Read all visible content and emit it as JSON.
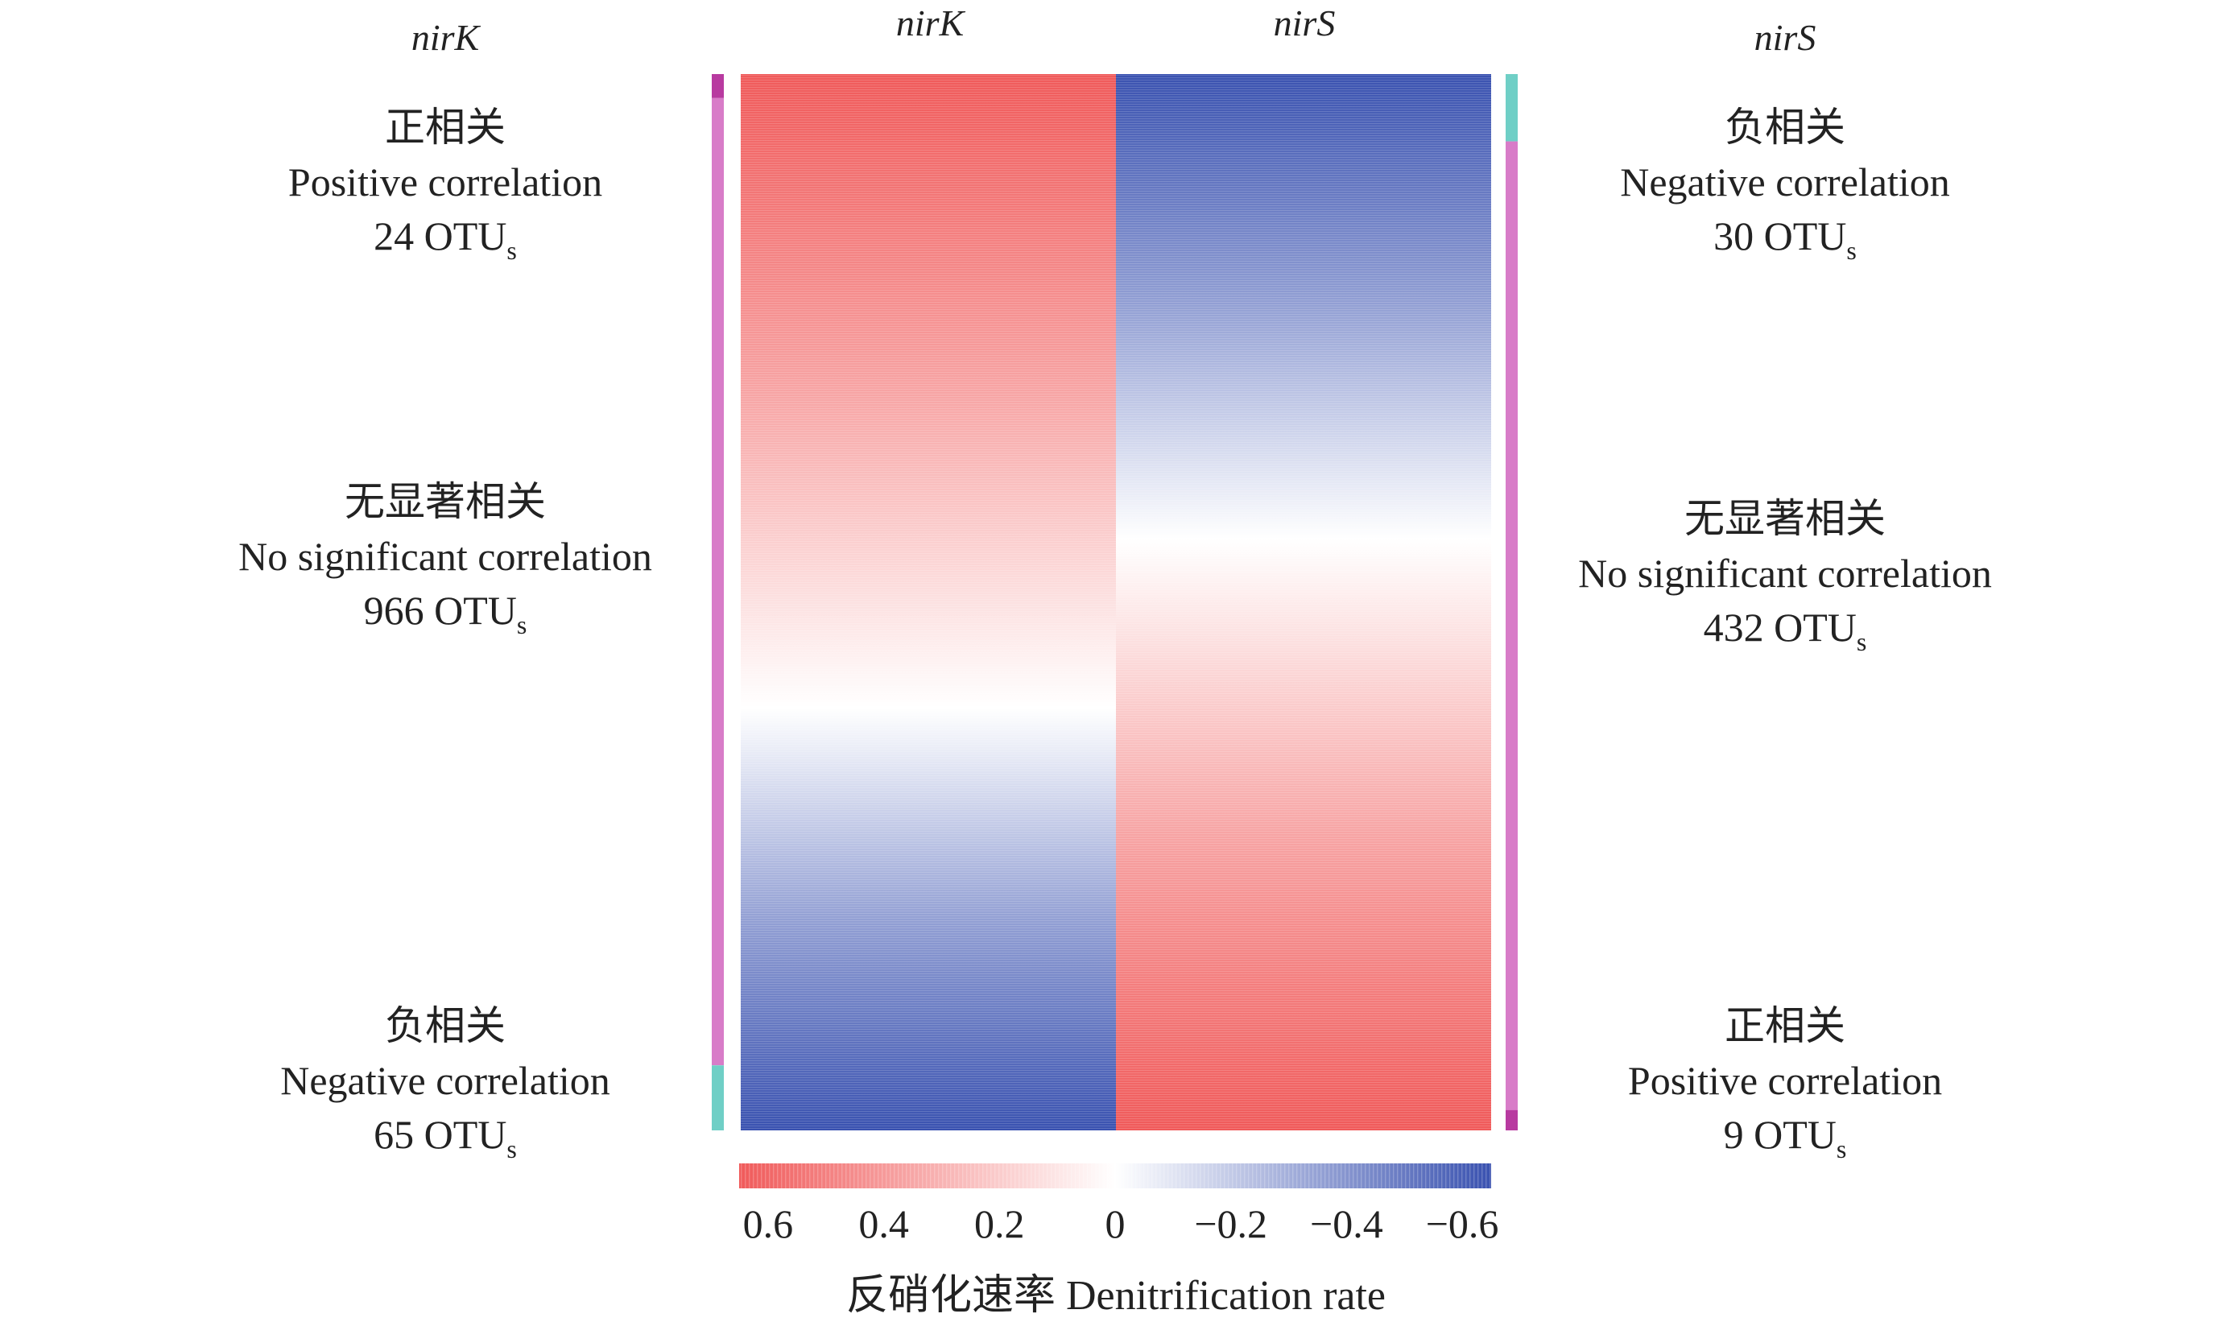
{
  "chart_data": {
    "type": "heatmap",
    "columns": [
      "nirK",
      "nirS"
    ],
    "colorbar": {
      "tick_labels": [
        "0.6",
        "0.4",
        "0.2",
        "0",
        "−0.2",
        "−0.4",
        "−0.6"
      ],
      "ticks": [
        0.6,
        0.4,
        0.2,
        0,
        -0.2,
        -0.4,
        -0.6
      ],
      "range": [
        0.65,
        -0.65
      ],
      "label": "反硝化速率 Denitrification rate"
    },
    "colors": {
      "positive": "#f05a5a",
      "zero": "#ffffff",
      "negative": "#3a52b0",
      "pink_bar": "#d87cc8",
      "teal_bar": "#6fcfc6",
      "magenta_bar": "#b83aa0"
    },
    "columns_data": [
      {
        "name": "nirK",
        "value_top": 0.65,
        "value_bottom": -0.65,
        "zero_fraction": 0.6,
        "groups": [
          {
            "cn": "正相关",
            "en": "Positive correlation",
            "count": "24 OTU",
            "sub": "s",
            "otus": 24,
            "color": "magenta"
          },
          {
            "cn": "无显著相关",
            "en": "No significant correlation",
            "count": "966 OTU",
            "sub": "s",
            "otus": 966,
            "color": "pink"
          },
          {
            "cn": "负相关",
            "en": "Negative correlation",
            "count": "65 OTU",
            "sub": "s",
            "otus": 65,
            "color": "teal"
          }
        ]
      },
      {
        "name": "nirS",
        "value_top": -0.65,
        "value_bottom": 0.65,
        "zero_fraction": 0.44,
        "groups": [
          {
            "cn": "负相关",
            "en": "Negative correlation",
            "count": "30 OTU",
            "sub": "s",
            "otus": 30,
            "color": "teal"
          },
          {
            "cn": "无显著相关",
            "en": "No significant correlation",
            "count": "432 OTU",
            "sub": "s",
            "otus": 432,
            "color": "pink"
          },
          {
            "cn": "正相关",
            "en": "Positive correlation",
            "count": "9 OTU",
            "sub": "s",
            "otus": 9,
            "color": "magenta"
          }
        ]
      }
    ]
  }
}
